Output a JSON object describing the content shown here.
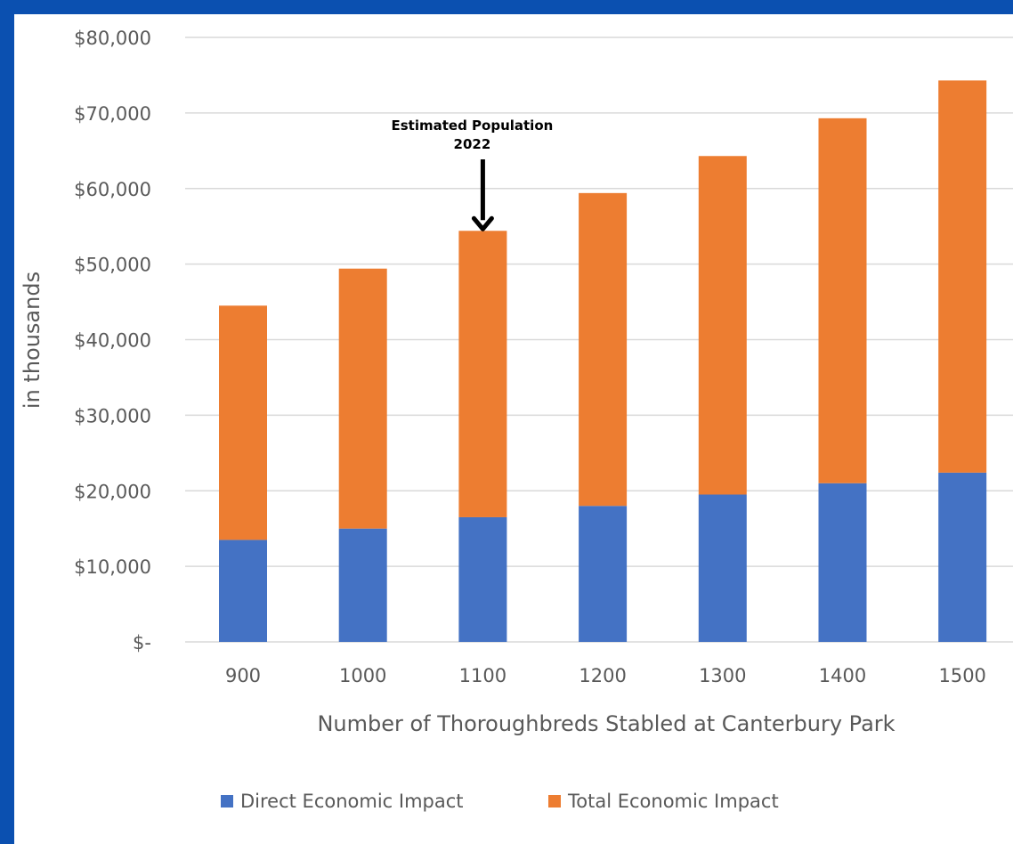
{
  "chart_data": {
    "type": "bar",
    "stacked": true,
    "categories": [
      "900",
      "1000",
      "1100",
      "1200",
      "1300",
      "1400",
      "1500"
    ],
    "series": [
      {
        "name": "Direct Economic Impact",
        "color": "#4472c4",
        "values": [
          13500,
          15000,
          16500,
          18000,
          19500,
          21000,
          22400
        ]
      },
      {
        "name": "Total Economic Impact",
        "color": "#ed7d31",
        "values": [
          31000,
          34400,
          37900,
          41400,
          44800,
          48300,
          51900
        ]
      }
    ],
    "xlabel": "Number of Thoroughbreds Stabled at Canterbury Park",
    "ylabel": "in thousands",
    "ylim": [
      0,
      80000
    ],
    "yticks": [
      0,
      10000,
      20000,
      30000,
      40000,
      50000,
      60000,
      70000,
      80000
    ],
    "ytick_labels": [
      "$-",
      "$10,000",
      "$20,000",
      "$30,000",
      "$40,000",
      "$50,000",
      "$60,000",
      "$70,000",
      "$80,000"
    ],
    "grid": true,
    "legend_position": "bottom",
    "annotation": {
      "lines": [
        "Estimated Population",
        "2022"
      ],
      "category": "1100"
    }
  }
}
